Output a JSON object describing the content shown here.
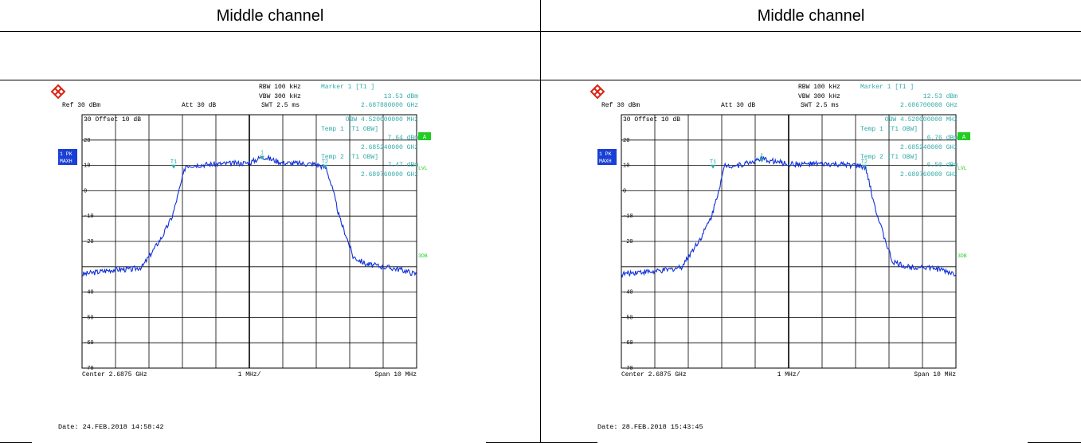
{
  "headers": [
    "Middle channel",
    "Middle channel"
  ],
  "chart_data": [
    {
      "type": "line",
      "ref": "Ref  30 dBm",
      "att": "Att  30 dB",
      "rbw": "RBW 100 kHz",
      "vbw": "VBW 300 kHz",
      "swt": "SWT 2.5 ms",
      "offset": "30 Offset  10 dB",
      "marker_title": "Marker 1 [T1 ]",
      "marker_level": "13.53 dBm",
      "marker_freq": "2.687880000 GHz",
      "obw": "OBW  4.520000000 MHz",
      "temp1": "Temp 1  [T1 OBW]",
      "temp1_level": "7.64 dBm",
      "temp1_freq": "2.685240000 GHz",
      "temp2": "Temp 2  [T1 OBW]",
      "temp2_level": "7.47 dBm",
      "temp2_freq": "2.689760000 GHz",
      "left_badge_1": "1 PK",
      "left_badge_2": "MAXH",
      "right_badge_a": "A",
      "right_lvl": "LVL",
      "right_3db": "3DB",
      "yticks": [
        "20",
        "10",
        "0",
        "-10",
        "-20",
        "-40",
        "-50",
        "-60",
        "-70"
      ],
      "center": "Center 2.6875 GHz",
      "div": "1 MHz/",
      "span": "Span 10 MHz",
      "date": "Date: 24.FEB.2018  14:58:42",
      "ylim": [
        -70,
        30
      ],
      "xlim_mhz": [
        2682.5,
        2692.5
      ],
      "trace_mhz": [
        2682.5,
        2683.0,
        2683.5,
        2684.0,
        2684.3,
        2684.6,
        2684.9,
        2685.2,
        2685.4,
        2685.6,
        2686.5,
        2687.5,
        2687.9,
        2688.5,
        2689.5,
        2689.8,
        2690.0,
        2690.2,
        2690.4,
        2690.6,
        2691.0,
        2691.5,
        2692.0,
        2692.5
      ],
      "trace_dbm": [
        -33,
        -32,
        -31,
        -31,
        -30,
        -24,
        -18,
        -10,
        0,
        10,
        10.5,
        11,
        13.5,
        11,
        10.5,
        9,
        0,
        -11,
        -18,
        -26,
        -29,
        -30,
        -31,
        -33
      ],
      "markers": [
        {
          "label": "1",
          "x_mhz": 2687.88,
          "y_dbm": 12.5
        },
        {
          "label": "T1",
          "x_mhz": 2685.24,
          "y_dbm": 9
        },
        {
          "label": "T2",
          "x_mhz": 2689.76,
          "y_dbm": 9
        }
      ]
    },
    {
      "type": "line",
      "ref": "Ref  30 dBm",
      "att": "Att  30 dB",
      "rbw": "RBW 100 kHz",
      "vbw": "VBW 300 kHz",
      "swt": "SWT 2.5 ms",
      "offset": "30 Offset  10 dB",
      "marker_title": "Marker 1 [T1 ]",
      "marker_level": "12.53 dBm",
      "marker_freq": "2.686700000 GHz",
      "obw": "OBW  4.520000000 MHz",
      "temp1": "Temp 1  [T1 OBW]",
      "temp1_level": "6.76 dBm",
      "temp1_freq": "2.685240000 GHz",
      "temp2": "Temp 2  [T1 OBW]",
      "temp2_level": "6.50 dBm",
      "temp2_freq": "2.689760000 GHz",
      "left_badge_1": "1 PK",
      "left_badge_2": "MAXH",
      "right_badge_a": "A",
      "right_lvl": "LVL",
      "right_3db": "3DB",
      "yticks": [
        "20",
        "10",
        "0",
        "-10",
        "-20",
        "-40",
        "-50",
        "-60",
        "-70"
      ],
      "center": "Center 2.6875 GHz",
      "div": "1 MHz/",
      "span": "Span 10 MHz",
      "date": "Date: 28.FEB.2018  15:43:45",
      "ylim": [
        -70,
        30
      ],
      "xlim_mhz": [
        2682.5,
        2692.5
      ],
      "trace_mhz": [
        2682.5,
        2683.0,
        2683.5,
        2684.0,
        2684.3,
        2684.6,
        2684.9,
        2685.2,
        2685.4,
        2685.6,
        2686.0,
        2686.7,
        2687.5,
        2688.5,
        2689.5,
        2689.8,
        2690.0,
        2690.2,
        2690.4,
        2690.6,
        2691.0,
        2691.5,
        2692.0,
        2692.5
      ],
      "trace_dbm": [
        -33,
        -32,
        -32,
        -31,
        -30,
        -24,
        -18,
        -10,
        0,
        10,
        10,
        12.5,
        10.5,
        10.5,
        10,
        9,
        -2,
        -12,
        -20,
        -28,
        -30,
        -30,
        -31,
        -33
      ],
      "markers": [
        {
          "label": "1",
          "x_mhz": 2686.7,
          "y_dbm": 11.5
        },
        {
          "label": "T1",
          "x_mhz": 2685.24,
          "y_dbm": 9
        },
        {
          "label": "T2",
          "x_mhz": 2689.76,
          "y_dbm": 9
        }
      ]
    }
  ]
}
